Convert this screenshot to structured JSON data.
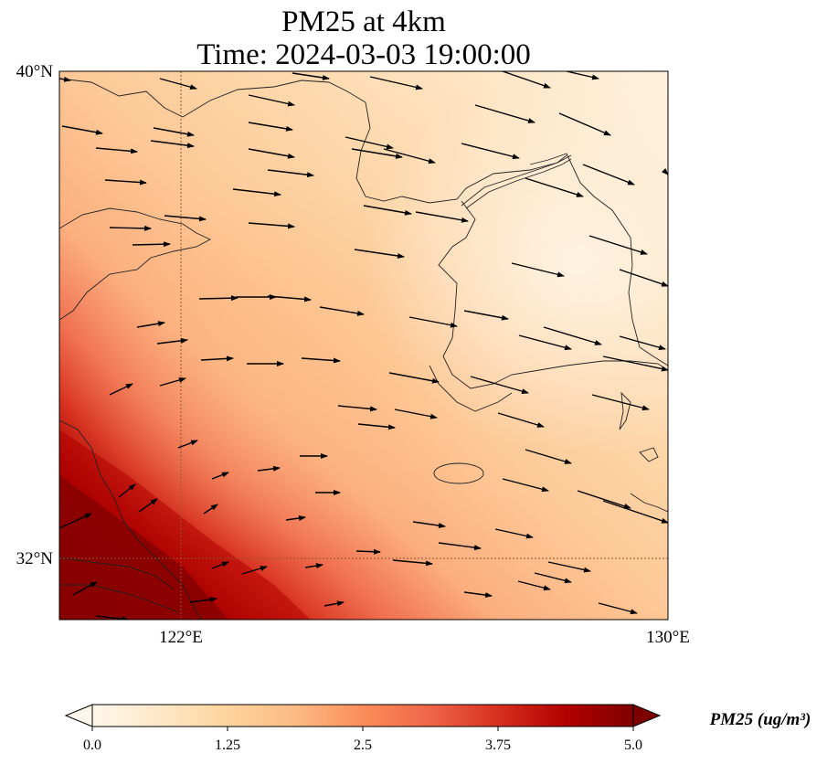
{
  "map": {
    "title_line1": "PM25 at 4km",
    "title_line2": "Time: 2024-03-03 19:00:00",
    "lat_ticks": [
      "40°N",
      "32°N"
    ],
    "lon_ticks": [
      "122°E",
      "130°E"
    ],
    "extent": {
      "lon_min": 120,
      "lon_max": 130,
      "lat_min": 31,
      "lat_max": 40
    },
    "gridlines": {
      "lon": 122,
      "lat": 32,
      "color": "#8b5a2b",
      "style": "dotted"
    }
  },
  "colorbar": {
    "ticks": [
      "0.0",
      "1.25",
      "2.5",
      "3.75",
      "5.0"
    ],
    "label": "PM25 (ug/m³)",
    "colormap": "OrRd",
    "stops": [
      "#fff7ec",
      "#fee8c8",
      "#fdd49e",
      "#fdbb84",
      "#fc8d59",
      "#ef6548",
      "#d7301f",
      "#b30000",
      "#7f0000"
    ]
  },
  "wind": {
    "description": "wind vectors",
    "prevailing_direction": "west-northwest to east-southeast"
  },
  "chart_data": {
    "type": "heatmap",
    "title": "PM25 at 4km\nTime: 2024-03-03 19:00:00",
    "variable": "PM25",
    "units": "ug/m3",
    "vmin": 0.0,
    "vmax": 5.0,
    "colorbar_ticks": [
      0.0,
      1.25,
      2.5,
      3.75,
      5.0
    ],
    "xlim": [
      120,
      130
    ],
    "ylim": [
      31,
      40
    ],
    "pattern": "highest concentrations (5.0+) in the southwest corner near Shanghai/Yangtze delta, decreasing northeastward to near 0 over the Korean peninsula"
  }
}
